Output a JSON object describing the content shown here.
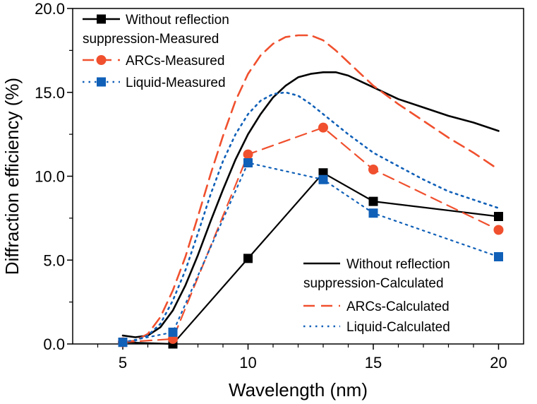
{
  "chart_data": {
    "type": "line",
    "xlabel": "Wavelength (nm)",
    "ylabel": "Diffraction efficiency (%)",
    "xlim": [
      3,
      21
    ],
    "ylim": [
      0,
      20
    ],
    "x_ticks": [
      5,
      10,
      15,
      20
    ],
    "y_ticks": [
      "0.0",
      "5.0",
      "10.0",
      "15.0",
      "20.0"
    ],
    "grid": false,
    "series": [
      {
        "name": "Without reflection suppression-Measured",
        "legend_lines": [
          "Without reflection",
          "suppression-Measured"
        ],
        "kind": "measured",
        "color": "#000000",
        "marker": "square",
        "line_style": "solid",
        "x": [
          5,
          7,
          10,
          13,
          15,
          20
        ],
        "y": [
          0.1,
          0.0,
          5.1,
          10.2,
          8.5,
          7.6
        ]
      },
      {
        "name": "ARCs-Measured",
        "legend_lines": [
          "ARCs-Measured"
        ],
        "kind": "measured",
        "color": "#f0502e",
        "marker": "circle",
        "line_style": "dashed",
        "x": [
          5,
          7,
          10,
          13,
          15,
          20
        ],
        "y": [
          0.1,
          0.3,
          11.3,
          12.9,
          10.4,
          6.8
        ]
      },
      {
        "name": "Liquid-Measured",
        "legend_lines": [
          "Liquid-Measured"
        ],
        "kind": "measured",
        "color": "#1060b8",
        "marker": "square",
        "line_style": "dotted",
        "x": [
          5,
          7,
          10,
          13,
          15,
          20
        ],
        "y": [
          0.1,
          0.7,
          10.8,
          9.8,
          7.8,
          5.2
        ]
      },
      {
        "name": "Without reflection suppression-Calculated",
        "legend_lines": [
          "Without reflection",
          "suppression-Calculated"
        ],
        "kind": "calculated",
        "color": "#000000",
        "line_style": "solid",
        "x": [
          5,
          5.5,
          6,
          6.5,
          7,
          7.5,
          8,
          8.5,
          9,
          9.5,
          10,
          10.5,
          11,
          11.5,
          12,
          12.5,
          13,
          13.5,
          14,
          15,
          16,
          17,
          18,
          19,
          20
        ],
        "y": [
          0.5,
          0.4,
          0.5,
          1.0,
          2.0,
          3.5,
          5.3,
          7.3,
          9.2,
          11.0,
          12.5,
          13.7,
          14.7,
          15.4,
          15.9,
          16.1,
          16.2,
          16.2,
          16.0,
          15.3,
          14.6,
          14.1,
          13.6,
          13.2,
          12.7
        ]
      },
      {
        "name": "ARCs-Calculated",
        "legend_lines": [
          "ARCs-Calculated"
        ],
        "kind": "calculated",
        "color": "#f0502e",
        "line_style": "dashed",
        "x": [
          5,
          5.5,
          6,
          6.5,
          7,
          7.5,
          8,
          8.5,
          9,
          9.5,
          10,
          10.5,
          11,
          11.5,
          12,
          12.5,
          13,
          13.5,
          14,
          15,
          16,
          17,
          18,
          19,
          20
        ],
        "y": [
          0.1,
          0.2,
          0.6,
          1.6,
          3.2,
          5.2,
          7.6,
          10.1,
          12.4,
          14.5,
          16.1,
          17.2,
          17.9,
          18.3,
          18.4,
          18.4,
          18.1,
          17.5,
          16.8,
          15.4,
          14.3,
          13.3,
          12.3,
          11.4,
          10.4
        ]
      },
      {
        "name": "Liquid-Calculated",
        "legend_lines": [
          "Liquid-Calculated"
        ],
        "kind": "calculated",
        "color": "#1060b8",
        "line_style": "dotted",
        "x": [
          5,
          5.5,
          6,
          6.5,
          7,
          7.5,
          8,
          8.5,
          9,
          9.5,
          10,
          10.5,
          11,
          11.5,
          12,
          12.5,
          13,
          13.5,
          14,
          15,
          16,
          17,
          18,
          19,
          20
        ],
        "y": [
          0.1,
          0.2,
          0.5,
          1.2,
          2.6,
          4.4,
          6.6,
          8.9,
          10.9,
          12.5,
          13.7,
          14.5,
          14.9,
          15.0,
          14.8,
          14.3,
          13.7,
          13.1,
          12.5,
          11.4,
          10.6,
          9.8,
          9.1,
          8.6,
          8.1
        ]
      }
    ]
  }
}
